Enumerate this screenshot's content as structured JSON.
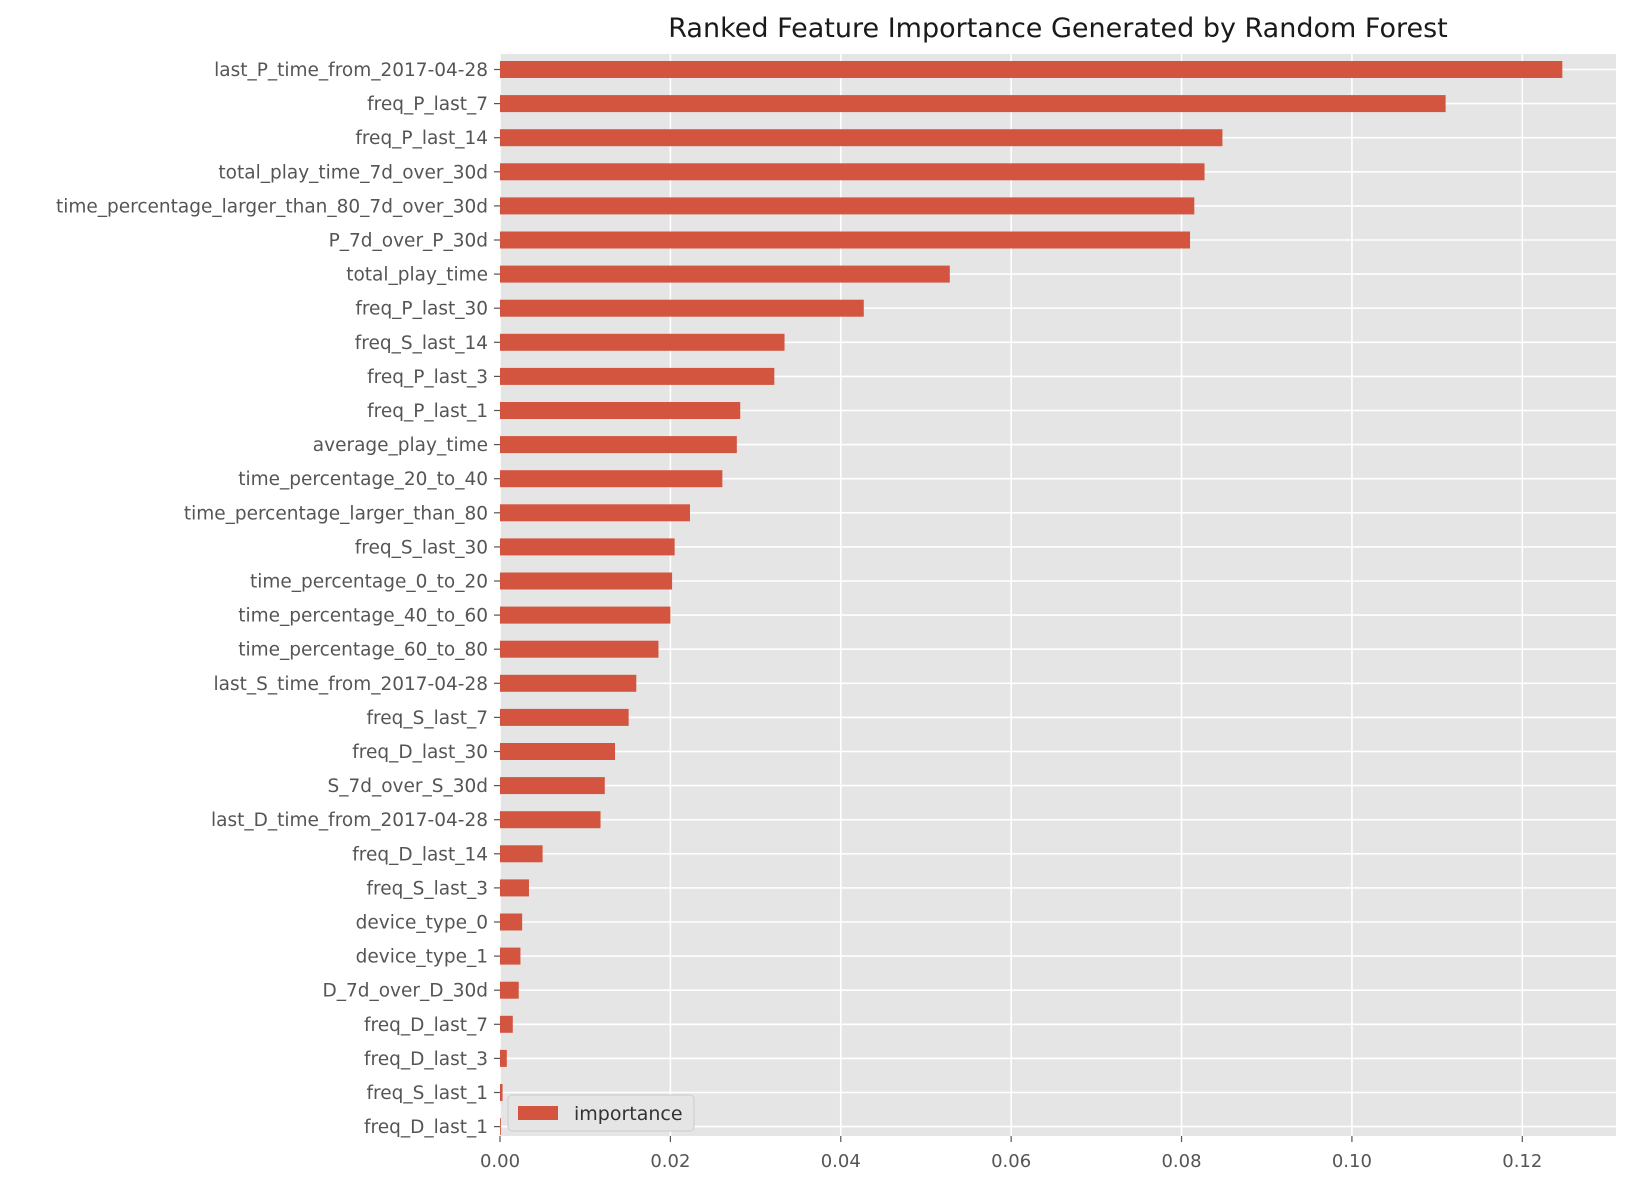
{
  "colors": {
    "bar": "#d35540",
    "plot_background": "#e5e5e5",
    "grid": "#ffffff",
    "tick_label": "#555555",
    "title": "#1a1a1a"
  },
  "chart_data": {
    "type": "bar",
    "orientation": "horizontal",
    "title": "Ranked Feature Importance Generated by Random Forest",
    "xlabel": "",
    "ylabel": "",
    "xlim": [
      0,
      0.131
    ],
    "grid": true,
    "legend": {
      "position": "bottom-left",
      "entries": [
        "importance"
      ]
    },
    "xticks": [
      {
        "value": 0.0,
        "label": "0.00"
      },
      {
        "value": 0.02,
        "label": "0.02"
      },
      {
        "value": 0.04,
        "label": "0.04"
      },
      {
        "value": 0.06,
        "label": "0.06"
      },
      {
        "value": 0.08,
        "label": "0.08"
      },
      {
        "value": 0.1,
        "label": "0.10"
      },
      {
        "value": 0.12,
        "label": "0.12"
      }
    ],
    "categories": [
      "last_P_time_from_2017-04-28",
      "freq_P_last_7",
      "freq_P_last_14",
      "total_play_time_7d_over_30d",
      "time_percentage_larger_than_80_7d_over_30d",
      "P_7d_over_P_30d",
      "total_play_time",
      "freq_P_last_30",
      "freq_S_last_14",
      "freq_P_last_3",
      "freq_P_last_1",
      "average_play_time",
      "time_percentage_20_to_40",
      "time_percentage_larger_than_80",
      "freq_S_last_30",
      "time_percentage_0_to_20",
      "time_percentage_40_to_60",
      "time_percentage_60_to_80",
      "last_S_time_from_2017-04-28",
      "freq_S_last_7",
      "freq_D_last_30",
      "S_7d_over_S_30d",
      "last_D_time_from_2017-04-28",
      "freq_D_last_14",
      "freq_S_last_3",
      "device_type_0",
      "device_type_1",
      "D_7d_over_D_30d",
      "freq_D_last_7",
      "freq_D_last_3",
      "freq_S_last_1",
      "freq_D_last_1"
    ],
    "series": [
      {
        "name": "importance",
        "values": [
          0.1247,
          0.111,
          0.0848,
          0.0827,
          0.0815,
          0.081,
          0.0528,
          0.0427,
          0.0334,
          0.0322,
          0.0282,
          0.0278,
          0.0261,
          0.0223,
          0.0205,
          0.0202,
          0.02,
          0.0186,
          0.016,
          0.0151,
          0.0135,
          0.0123,
          0.0118,
          0.005,
          0.0034,
          0.0026,
          0.0024,
          0.0022,
          0.0015,
          0.0008,
          0.0003,
          0.0001
        ]
      }
    ]
  }
}
